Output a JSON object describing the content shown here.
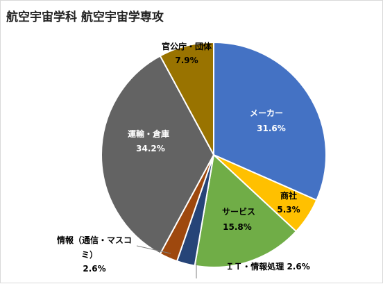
{
  "chart_data": {
    "type": "pie",
    "title": "航空宇宙学科 航空宇宙学専攻",
    "start_angle_deg": 0,
    "direction": "clockwise",
    "slices": [
      {
        "label": "メーカー",
        "value_text": "31.6%",
        "value": 31.6,
        "color": "#4472C4",
        "label_color": "#ffffff"
      },
      {
        "label": "商社",
        "value_text": "5.3%",
        "value": 5.3,
        "color": "#FFC000",
        "label_color": "#000000"
      },
      {
        "label": "サービス",
        "value_text": "15.8%",
        "value": 15.8,
        "color": "#70AD47",
        "label_color": "#000000"
      },
      {
        "label": "ＩＴ・情報処理",
        "value_text": "2.6%",
        "value": 2.6,
        "color": "#264478",
        "label_color": "#000000"
      },
      {
        "label": "情報（通信・マスコミ）",
        "value_text": "2.6%",
        "value": 2.6,
        "color": "#9E480E",
        "label_color": "#000000"
      },
      {
        "label": "運輸・倉庫",
        "value_text": "34.2%",
        "value": 34.2,
        "color": "#636363",
        "label_color": "#ffffff"
      },
      {
        "label": "官公庁・団体",
        "value_text": "7.9%",
        "value": 7.9,
        "color": "#997300",
        "label_color": "#000000"
      }
    ]
  }
}
